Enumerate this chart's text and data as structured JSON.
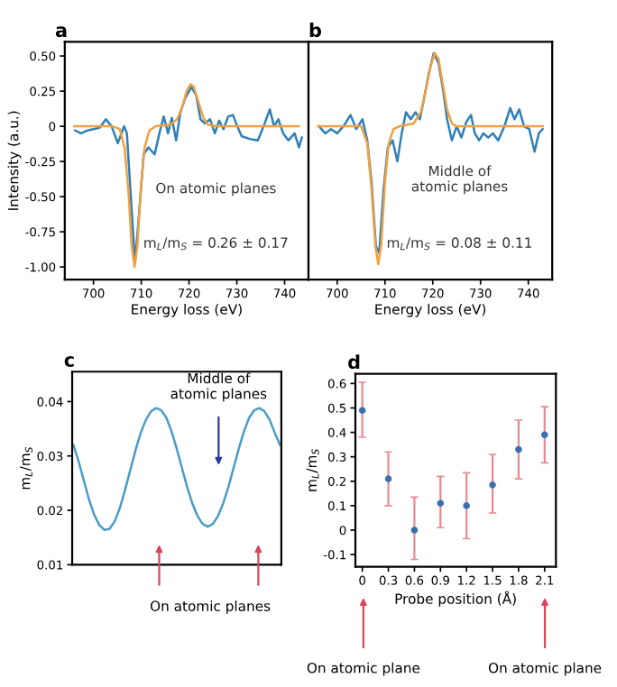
{
  "chart_data": [
    {
      "type": "line",
      "title": "a",
      "xlabel": "Energy loss (eV)",
      "ylabel": "Intensity (a.u.)",
      "xlim": [
        694,
        745
      ],
      "xticks": [
        700,
        710,
        720,
        730,
        740
      ],
      "ylim": [
        -1.09,
        0.6
      ],
      "yticks": [
        {
          "value": -1.0,
          "label": "-1.00"
        },
        {
          "value": -0.75,
          "label": "-0.75"
        },
        {
          "value": -0.5,
          "label": "-0.50"
        },
        {
          "value": -0.25,
          "label": "-0.25"
        },
        0,
        {
          "value": 0.25,
          "label": "0.25"
        },
        {
          "value": 0.5,
          "label": "0.50"
        }
      ],
      "grid": false,
      "legend": false,
      "series": [
        {
          "color": "#2f7fb8",
          "x": [
            696.2,
            697.4,
            698.7,
            700,
            701.3,
            702.6,
            703.8,
            705.1,
            706.4,
            707,
            708,
            708.7,
            709.6,
            710.5,
            711.5,
            712.8,
            713.8,
            714.7,
            715.6,
            716.4,
            717.3,
            718.2,
            719.2,
            720.5,
            721.5,
            722.4,
            723.3,
            724.4,
            725.4,
            726.3,
            727.2,
            728.2,
            729.2,
            730.1,
            731,
            732.7,
            734.4,
            735.6,
            736.9,
            737.8,
            738.7,
            739.7,
            740.8,
            742.1,
            743,
            743.6
          ],
          "values": [
            -0.03,
            -0.05,
            -0.03,
            -0.02,
            -0.01,
            0.05,
            0.0,
            -0.12,
            0.0,
            -0.05,
            -0.6,
            -0.97,
            -0.6,
            -0.2,
            -0.15,
            -0.2,
            -0.05,
            0.07,
            -0.05,
            0.06,
            -0.1,
            0.1,
            0.2,
            0.28,
            0.22,
            0.05,
            0.02,
            0.05,
            -0.05,
            0.04,
            -0.02,
            0.07,
            0.08,
            0.0,
            -0.07,
            -0.09,
            -0.1,
            0.0,
            0.12,
            0.0,
            0.05,
            -0.05,
            -0.1,
            -0.05,
            -0.15,
            -0.08
          ]
        },
        {
          "color": "#f0a040",
          "x": [
            696,
            704,
            705.5,
            706.5,
            707.3,
            708,
            708.6,
            709.2,
            709.9,
            710.7,
            711.7,
            713,
            716,
            717.5,
            718.5,
            719.5,
            720.3,
            721,
            722,
            723,
            724,
            726,
            743
          ],
          "values": [
            0,
            0,
            -0.02,
            -0.15,
            -0.45,
            -0.85,
            -1.0,
            -0.85,
            -0.45,
            -0.15,
            -0.03,
            0,
            0.01,
            0.05,
            0.13,
            0.25,
            0.3,
            0.28,
            0.17,
            0.06,
            0.01,
            0,
            0
          ]
        }
      ],
      "annotations": [
        "On atomic planes",
        "m$_{L}$/m$_{S}$ = 0.26 ± 0.17"
      ]
    },
    {
      "type": "line",
      "title": "b",
      "xlabel": "Energy loss (eV)",
      "xlim": [
        694,
        745
      ],
      "xticks": [
        700,
        710,
        720,
        730,
        740
      ],
      "ylim": [
        -1.09,
        0.6
      ],
      "tick_labels": "x",
      "grid": false,
      "legend": false,
      "series": [
        {
          "color": "#2f7fb8",
          "x": [
            696.2,
            697.5,
            698.7,
            700,
            701.3,
            702.8,
            704,
            705.3,
            706.3,
            707.2,
            708.1,
            708.8,
            709.7,
            710.6,
            711.6,
            712.6,
            713.5,
            714.4,
            715.4,
            716.4,
            717.3,
            718.2,
            719.2,
            720.2,
            721.2,
            722.2,
            723,
            724,
            725,
            726,
            727,
            728,
            728.8,
            729.7,
            730.6,
            731.6,
            732.6,
            733.7,
            735,
            736.2,
            737.1,
            738.1,
            739.1,
            740.2,
            741.3,
            742.2,
            743
          ],
          "values": [
            0.0,
            -0.05,
            -0.02,
            -0.05,
            0.0,
            0.08,
            -0.02,
            0.05,
            -0.1,
            -0.4,
            -0.85,
            -0.9,
            -0.45,
            -0.15,
            -0.1,
            -0.25,
            -0.05,
            0.1,
            0.05,
            0.1,
            0.05,
            0.2,
            0.38,
            0.52,
            0.45,
            0.25,
            0.05,
            -0.1,
            0.0,
            -0.08,
            0.03,
            0.08,
            -0.05,
            -0.1,
            -0.05,
            -0.08,
            -0.05,
            -0.1,
            0.0,
            0.13,
            0.05,
            0.12,
            0.0,
            -0.02,
            -0.18,
            -0.05,
            -0.02
          ]
        },
        {
          "color": "#f0a040",
          "x": [
            696,
            705,
            706.3,
            707.2,
            708,
            708.6,
            709.2,
            710,
            710.8,
            711.8,
            713,
            716,
            717.5,
            718.5,
            719.5,
            720.4,
            721.2,
            722,
            723,
            724,
            725,
            743
          ],
          "values": [
            0,
            0,
            -0.12,
            -0.45,
            -0.85,
            -0.98,
            -0.85,
            -0.4,
            -0.12,
            -0.02,
            0,
            0.02,
            0.1,
            0.25,
            0.42,
            0.52,
            0.48,
            0.32,
            0.12,
            0.02,
            0,
            0
          ]
        }
      ],
      "annotations": [
        "Middle of\natomic planes",
        "m$_{L}$/m$_{S}$ = 0.08 ± 0.11"
      ]
    },
    {
      "type": "line",
      "title": "c",
      "ylabel": "m$_{L}$/m$_{S}$",
      "categories": [
        null,
        null,
        null,
        null,
        null,
        null,
        null,
        null,
        null,
        null,
        null,
        null,
        null,
        null,
        null,
        null,
        null,
        null,
        null,
        null,
        null,
        null,
        null,
        null,
        null,
        null,
        null,
        null,
        null,
        null,
        null,
        null,
        null,
        null,
        null,
        null,
        null,
        null,
        null,
        null,
        null
      ],
      "ylim": [
        0.01,
        0.0455
      ],
      "yticks": [
        0.01,
        0.02,
        0.03,
        0.04
      ],
      "tick_labels": "y",
      "grid": false,
      "legend": false,
      "series": [
        {
          "color": "#4a9cc8",
          "values": [
            0.032,
            0.029,
            0.0255,
            0.022,
            0.0192,
            0.0173,
            0.0164,
            0.0166,
            0.018,
            0.0205,
            0.0238,
            0.0274,
            0.031,
            0.0342,
            0.0366,
            0.0382,
            0.0388,
            0.0384,
            0.037,
            0.0345,
            0.0313,
            0.0278,
            0.0243,
            0.0213,
            0.019,
            0.0175,
            0.017,
            0.0175,
            0.019,
            0.0213,
            0.0243,
            0.0278,
            0.0313,
            0.0345,
            0.037,
            0.0384,
            0.0388,
            0.0382,
            0.0366,
            0.0342,
            0.032
          ]
        }
      ],
      "annotations": [
        "Middle of\natomic planes",
        "On atomic planes"
      ]
    },
    {
      "type": "scatter",
      "title": "d",
      "xlabel": "Probe position (Å)",
      "ylabel": "m$_{L}$/m$_{S}$",
      "xlim": [
        -0.08,
        2.23
      ],
      "xticks": [
        0,
        0.3,
        0.6,
        0.9,
        1.2,
        1.5,
        1.8,
        2.1
      ],
      "ylim": [
        -0.15,
        0.64
      ],
      "yticks": [
        -0.1,
        0,
        0.1,
        0.2,
        0.3,
        0.4,
        0.5,
        0.6
      ],
      "grid": false,
      "legend": false,
      "marker": "circle",
      "series": [
        {
          "color": "#3a6fb0",
          "x": [
            0,
            0.3,
            0.6,
            0.9,
            1.2,
            1.5,
            1.8,
            2.1
          ],
          "values": [
            0.49,
            0.21,
            0.0,
            0.11,
            0.1,
            0.185,
            0.33,
            0.39
          ],
          "errors": [
            [
              0.38,
              0.605
            ],
            [
              0.1,
              0.32
            ],
            [
              -0.12,
              0.135
            ],
            [
              0.01,
              0.22
            ],
            [
              -0.035,
              0.235
            ],
            [
              0.07,
              0.31
            ],
            [
              0.21,
              0.45
            ],
            [
              0.275,
              0.505
            ]
          ]
        }
      ],
      "annotations": [
        "On atomic plane",
        "On atomic plane"
      ]
    }
  ]
}
